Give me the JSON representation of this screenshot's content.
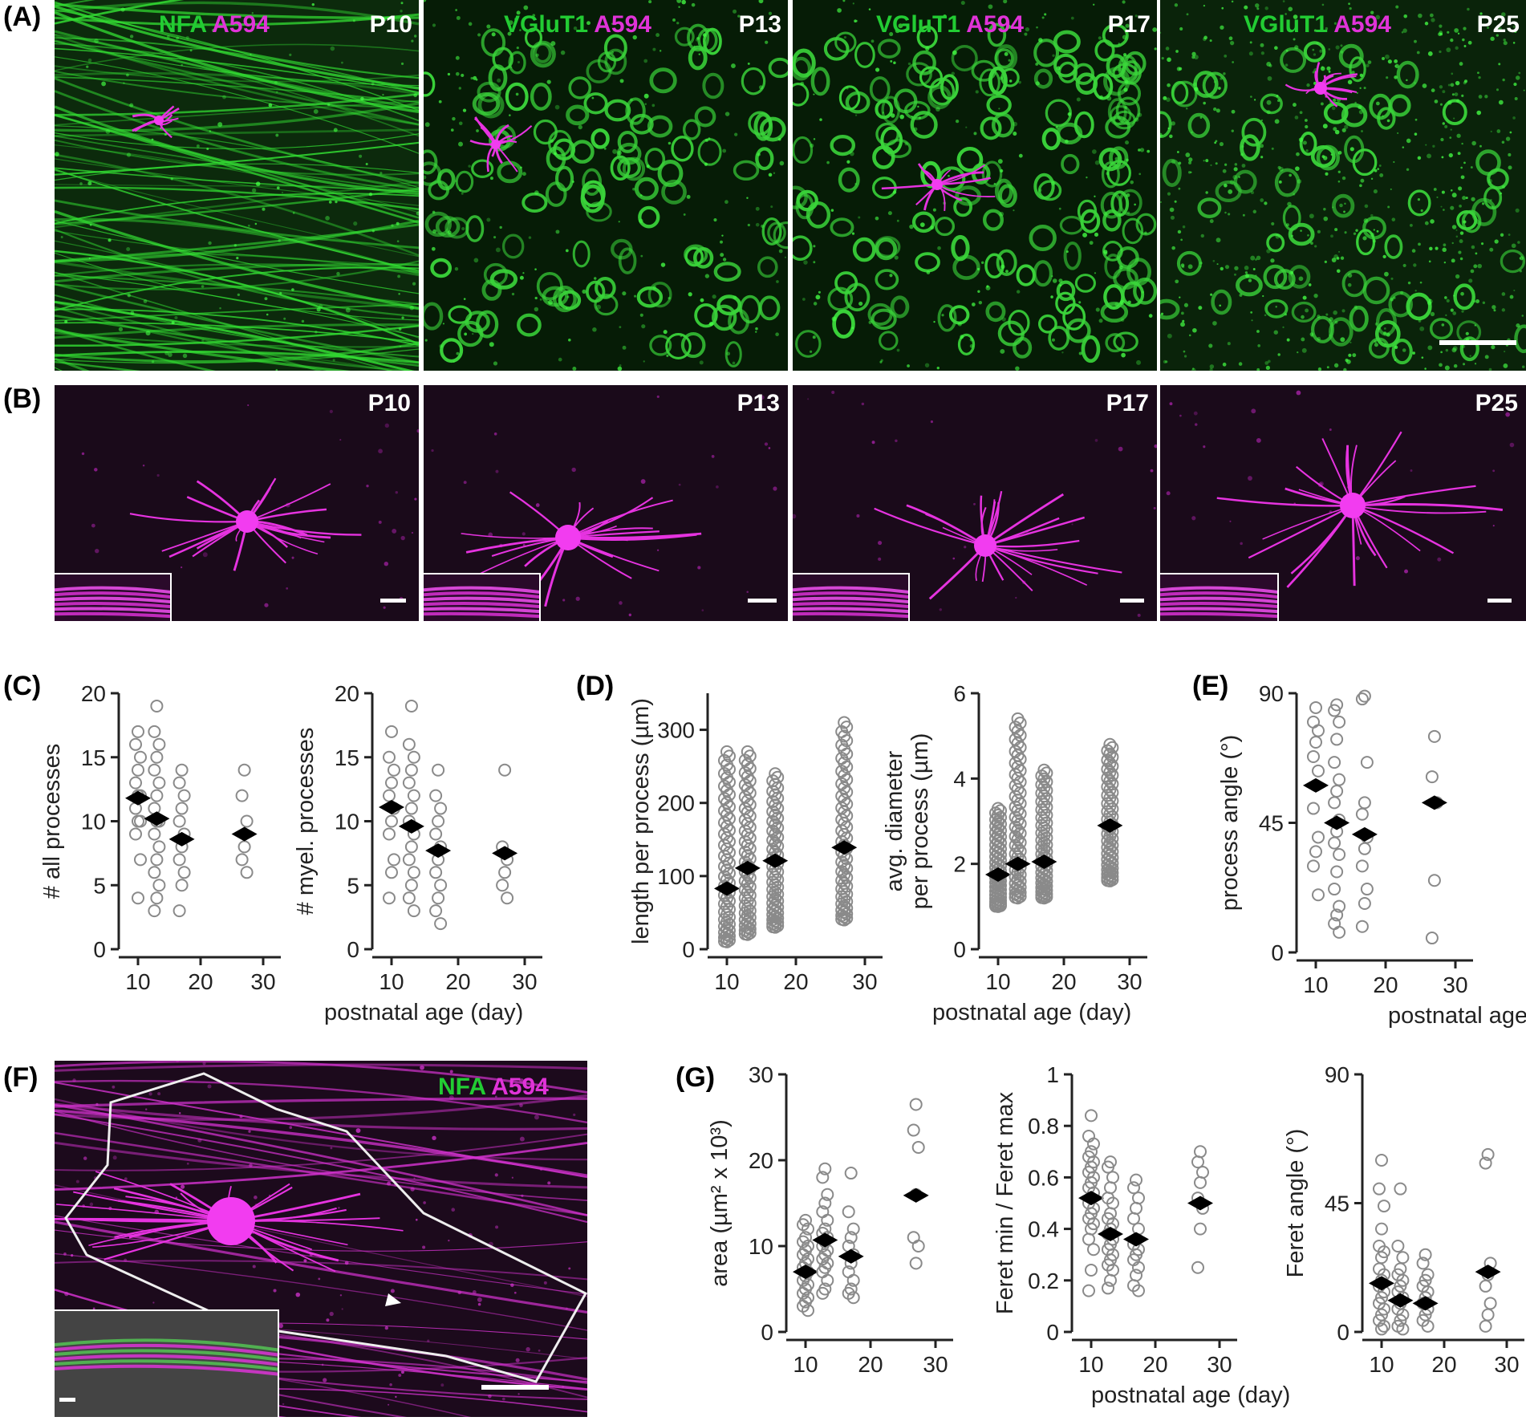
{
  "panel_letters": {
    "A": "(A)",
    "B": "(B)",
    "C": "(C)",
    "D": "(D)",
    "E": "(E)",
    "F": "(F)",
    "G": "(G)"
  },
  "row_A": [
    {
      "marker": "NFA",
      "dye": "A594",
      "age": "P10"
    },
    {
      "marker": "VGluT1",
      "dye": "A594",
      "age": "P13"
    },
    {
      "marker": "VGluT1",
      "dye": "A594",
      "age": "P17"
    },
    {
      "marker": "VGluT1",
      "dye": "A594",
      "age": "P25"
    }
  ],
  "row_B": [
    {
      "age": "P10"
    },
    {
      "age": "P13"
    },
    {
      "age": "P17"
    },
    {
      "age": "P25"
    }
  ],
  "panel_F": {
    "marker": "NFA",
    "dye": "A594"
  },
  "colors": {
    "green": "#22cc33",
    "magenta": "#e033d8",
    "mean_marker": "#000000",
    "points": "#8a8a8a"
  },
  "chart_data": [
    {
      "id": "C1",
      "type": "scatter",
      "ylabel": "# all processes",
      "xlabel": "",
      "xlim": [
        8,
        30
      ],
      "ylim": [
        0,
        20
      ],
      "xticks": [
        10,
        20,
        30
      ],
      "yticks": [
        0,
        5,
        10,
        15,
        20
      ],
      "groups": [
        {
          "x": 10,
          "values": [
            17,
            16,
            15,
            14,
            13,
            12,
            12,
            11,
            10,
            10,
            9,
            7,
            4
          ],
          "mean": 11.8
        },
        {
          "x": 13,
          "values": [
            19,
            17,
            16,
            15,
            14,
            13,
            12,
            11,
            10,
            10,
            9,
            8,
            7,
            6,
            5,
            4,
            3
          ],
          "mean": 10.2
        },
        {
          "x": 17,
          "values": [
            14,
            13,
            12,
            11,
            10,
            9,
            8,
            7,
            6,
            5,
            3
          ],
          "mean": 8.6
        },
        {
          "x": 27,
          "values": [
            14,
            12,
            10,
            8,
            7,
            6
          ],
          "mean": 9
        }
      ]
    },
    {
      "id": "C2",
      "type": "scatter",
      "ylabel": "# myel. processes",
      "xlabel": "postnatal age (day)",
      "xlim": [
        8,
        30
      ],
      "ylim": [
        0,
        20
      ],
      "xticks": [
        10,
        20,
        30
      ],
      "yticks": [
        0,
        5,
        10,
        15,
        20
      ],
      "groups": [
        {
          "x": 10,
          "values": [
            17,
            15,
            14,
            13,
            12,
            11,
            10,
            9,
            7,
            6,
            4
          ],
          "mean": 11.1
        },
        {
          "x": 13,
          "values": [
            19,
            16,
            15,
            14,
            13,
            12,
            11,
            10,
            9,
            8,
            7,
            6,
            5,
            4,
            3
          ],
          "mean": 9.6
        },
        {
          "x": 17,
          "values": [
            14,
            12,
            11,
            10,
            9,
            8,
            7,
            6,
            5,
            4,
            3,
            2
          ],
          "mean": 7.7
        },
        {
          "x": 27,
          "values": [
            14,
            8,
            7,
            6,
            5,
            4
          ],
          "mean": 7.5
        }
      ]
    },
    {
      "id": "D1",
      "type": "scatter",
      "ylabel": "length per process (µm)",
      "xlabel": "",
      "xlim": [
        8,
        30
      ],
      "ylim": [
        0,
        350
      ],
      "xticks": [
        10,
        20,
        30
      ],
      "yticks": [
        0,
        100,
        200,
        300
      ],
      "groups": [
        {
          "x": 10,
          "min": 10,
          "max": 270,
          "dense_top": 195,
          "mean": 83
        },
        {
          "x": 13,
          "min": 20,
          "max": 270,
          "dense_top": 240,
          "mean": 111
        },
        {
          "x": 17,
          "min": 30,
          "max": 240,
          "dense_top": 210,
          "mean": 121
        },
        {
          "x": 27,
          "min": 40,
          "max": 310,
          "dense_top": 210,
          "mean": 139
        }
      ]
    },
    {
      "id": "D2",
      "type": "scatter",
      "ylabel": "avg. diameter per process (µm)",
      "xlabel": "postnatal age (day)",
      "xlim": [
        8,
        30
      ],
      "ylim": [
        0,
        6
      ],
      "xticks": [
        10,
        20,
        30
      ],
      "yticks": [
        0,
        2,
        4,
        6
      ],
      "groups": [
        {
          "x": 10,
          "min": 1.0,
          "max": 3.3,
          "mean": 1.75
        },
        {
          "x": 13,
          "min": 1.2,
          "max": 5.4,
          "mean": 2.0
        },
        {
          "x": 17,
          "min": 1.2,
          "max": 4.2,
          "mean": 2.05
        },
        {
          "x": 27,
          "min": 1.6,
          "max": 4.8,
          "mean": 2.9
        }
      ]
    },
    {
      "id": "E",
      "type": "scatter",
      "ylabel": "process angle (°)",
      "xlabel": "postnatal age (day)",
      "xlim": [
        8,
        30
      ],
      "ylim": [
        0,
        90
      ],
      "xticks": [
        10,
        20,
        30
      ],
      "yticks": [
        0,
        45,
        90
      ],
      "groups": [
        {
          "x": 10,
          "values": [
            85,
            80,
            77,
            73,
            68,
            63,
            58,
            50,
            40,
            35,
            30,
            20
          ],
          "mean": 58
        },
        {
          "x": 13,
          "values": [
            86,
            84,
            80,
            74,
            66,
            60,
            56,
            52,
            46,
            42,
            38,
            34,
            28,
            22,
            16,
            13,
            10,
            7
          ],
          "mean": 45
        },
        {
          "x": 17,
          "values": [
            89,
            88,
            66,
            52,
            48,
            40,
            36,
            30,
            22,
            17,
            9
          ],
          "mean": 41
        },
        {
          "x": 27,
          "values": [
            75,
            61,
            52,
            25,
            5
          ],
          "mean": 52
        }
      ]
    },
    {
      "id": "G1",
      "type": "scatter",
      "ylabel": "area (µm² x 10³)",
      "xlabel": "",
      "xlim": [
        8,
        30
      ],
      "ylim": [
        0,
        30
      ],
      "xticks": [
        10,
        20,
        30
      ],
      "yticks": [
        0,
        10,
        20,
        30
      ],
      "groups": [
        {
          "x": 10,
          "values": [
            13,
            12.5,
            12,
            11,
            10.5,
            10,
            9.5,
            9,
            8.5,
            8,
            7.5,
            7,
            6.5,
            6,
            5.5,
            5,
            4.5,
            4,
            3.5,
            3,
            2.5
          ],
          "mean": 7
        },
        {
          "x": 13,
          "values": [
            19,
            18,
            16,
            15,
            14,
            13,
            12,
            11.5,
            11,
            10.5,
            10,
            9.5,
            9,
            8.5,
            8,
            7.5,
            7,
            6,
            5,
            4.5
          ],
          "mean": 10.7
        },
        {
          "x": 17,
          "values": [
            18.5,
            14,
            12,
            11,
            10,
            9,
            8,
            7,
            6,
            5,
            4.5,
            4
          ],
          "mean": 8.8
        },
        {
          "x": 27,
          "values": [
            26.5,
            23.5,
            21.5,
            16,
            11,
            10,
            8
          ],
          "mean": 15.9
        }
      ]
    },
    {
      "id": "G2",
      "type": "scatter",
      "ylabel": "Feret min / Feret max",
      "xlabel": "postnatal age (day)",
      "xlim": [
        8,
        30
      ],
      "ylim": [
        0,
        1
      ],
      "xticks": [
        10,
        20,
        30
      ],
      "yticks": [
        0,
        0.2,
        0.4,
        0.6,
        0.8,
        1
      ],
      "groups": [
        {
          "x": 10,
          "values": [
            0.84,
            0.76,
            0.73,
            0.7,
            0.68,
            0.66,
            0.64,
            0.62,
            0.6,
            0.58,
            0.56,
            0.54,
            0.52,
            0.5,
            0.48,
            0.46,
            0.44,
            0.42,
            0.4,
            0.36,
            0.32,
            0.24,
            0.16
          ],
          "mean": 0.52
        },
        {
          "x": 13,
          "values": [
            0.66,
            0.64,
            0.6,
            0.56,
            0.52,
            0.5,
            0.46,
            0.44,
            0.42,
            0.4,
            0.38,
            0.36,
            0.34,
            0.32,
            0.3,
            0.28,
            0.26,
            0.24,
            0.2,
            0.17
          ],
          "mean": 0.38
        },
        {
          "x": 17,
          "values": [
            0.59,
            0.56,
            0.52,
            0.48,
            0.44,
            0.4,
            0.36,
            0.34,
            0.32,
            0.3,
            0.28,
            0.25,
            0.22,
            0.18,
            0.16
          ],
          "mean": 0.36
        },
        {
          "x": 27,
          "values": [
            0.7,
            0.66,
            0.62,
            0.58,
            0.52,
            0.48,
            0.4,
            0.25
          ],
          "mean": 0.5
        }
      ]
    },
    {
      "id": "G3",
      "type": "scatter",
      "ylabel": "Feret angle (°)",
      "xlabel": "",
      "xlim": [
        8,
        30
      ],
      "ylim": [
        0,
        90
      ],
      "xticks": [
        10,
        20,
        30
      ],
      "yticks": [
        0,
        45,
        90
      ],
      "groups": [
        {
          "x": 10,
          "values": [
            60,
            50,
            44,
            36,
            30,
            28,
            26,
            22,
            20,
            18,
            16,
            14,
            12,
            10,
            8,
            6,
            4,
            2,
            1
          ],
          "mean": 17
        },
        {
          "x": 13,
          "values": [
            50,
            30,
            26,
            22,
            20,
            18,
            16,
            14,
            12,
            10,
            8,
            6,
            4,
            2,
            1
          ],
          "mean": 11
        },
        {
          "x": 17,
          "values": [
            27,
            24,
            20,
            18,
            16,
            14,
            12,
            10,
            8,
            6,
            4,
            2
          ],
          "mean": 10
        },
        {
          "x": 27,
          "values": [
            62,
            59,
            24,
            20,
            16,
            10,
            6,
            2
          ],
          "mean": 21
        }
      ]
    }
  ]
}
